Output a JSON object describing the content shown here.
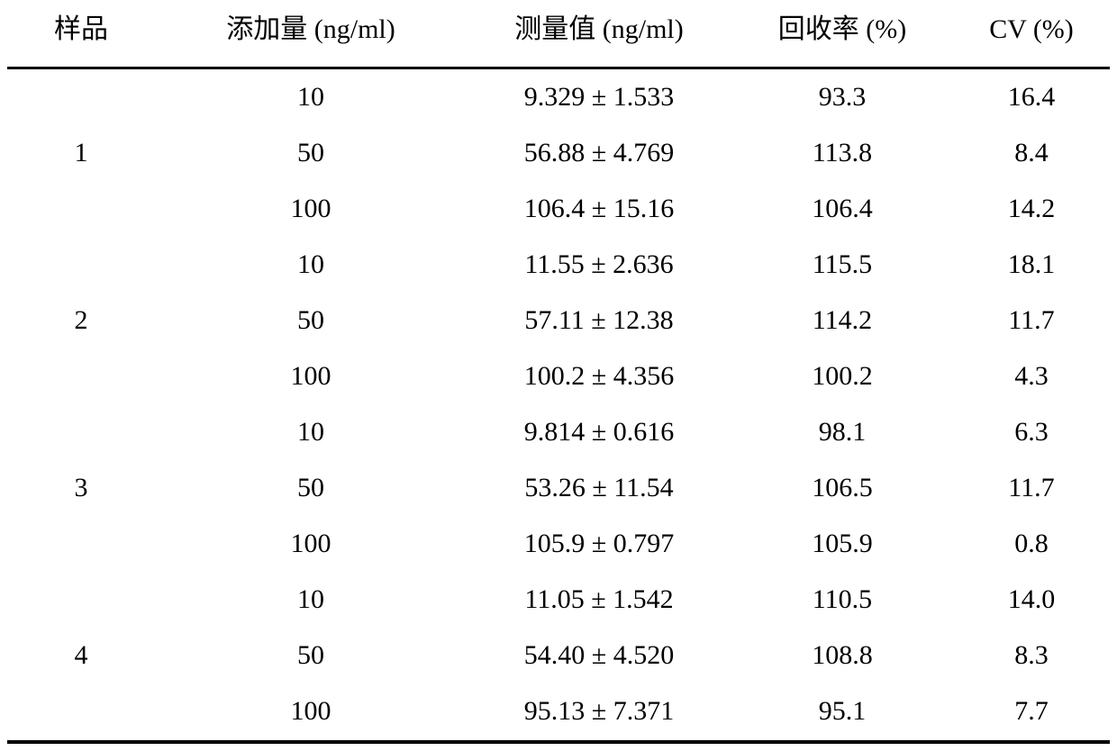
{
  "table": {
    "headers": {
      "sample": "样品",
      "added": "添加量 (ng/ml)",
      "measured": "测量值 (ng/ml)",
      "recovery": "回收率 (%)",
      "cv": "CV (%)"
    },
    "groups": [
      {
        "sample": "1",
        "rows": [
          {
            "added": "10",
            "measured": "9.329 ± 1.533",
            "recovery": "93.3",
            "cv": "16.4"
          },
          {
            "added": "50",
            "measured": "56.88 ± 4.769",
            "recovery": "113.8",
            "cv": "8.4"
          },
          {
            "added": "100",
            "measured": "106.4 ± 15.16",
            "recovery": "106.4",
            "cv": "14.2"
          }
        ]
      },
      {
        "sample": "2",
        "rows": [
          {
            "added": "10",
            "measured": "11.55 ± 2.636",
            "recovery": "115.5",
            "cv": "18.1"
          },
          {
            "added": "50",
            "measured": "57.11 ± 12.38",
            "recovery": "114.2",
            "cv": "11.7"
          },
          {
            "added": "100",
            "measured": "100.2 ± 4.356",
            "recovery": "100.2",
            "cv": "4.3"
          }
        ]
      },
      {
        "sample": "3",
        "rows": [
          {
            "added": "10",
            "measured": "9.814 ± 0.616",
            "recovery": "98.1",
            "cv": "6.3"
          },
          {
            "added": "50",
            "measured": "53.26 ± 11.54",
            "recovery": "106.5",
            "cv": "11.7"
          },
          {
            "added": "100",
            "measured": "105.9 ± 0.797",
            "recovery": "105.9",
            "cv": "0.8"
          }
        ]
      },
      {
        "sample": "4",
        "rows": [
          {
            "added": "10",
            "measured": "11.05 ± 1.542",
            "recovery": "110.5",
            "cv": "14.0"
          },
          {
            "added": "50",
            "measured": "54.40 ± 4.520",
            "recovery": "108.8",
            "cv": "8.3"
          },
          {
            "added": "100",
            "measured": "95.13 ± 7.371",
            "recovery": "95.1",
            "cv": "7.7"
          }
        ]
      }
    ]
  }
}
